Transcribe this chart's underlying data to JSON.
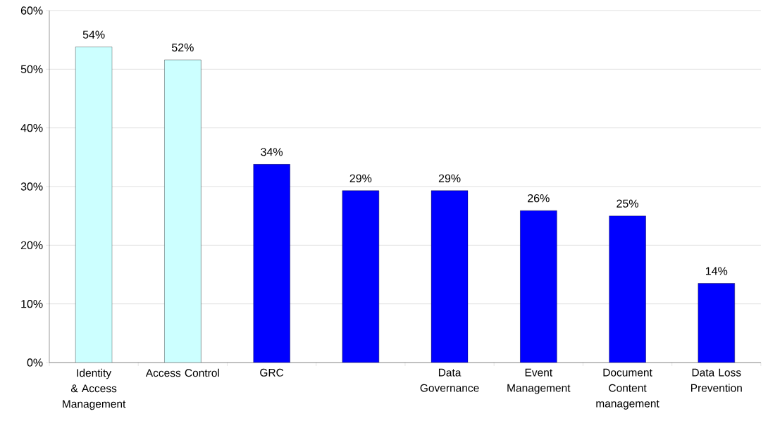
{
  "chart_data": {
    "type": "bar",
    "categories": [
      "Identity & Access Management",
      "Access Control",
      "GRC",
      null,
      "Data Governance",
      "Event Management",
      "Document Content management",
      "Data Loss Prevention"
    ],
    "values": [
      53.8,
      51.6,
      33.8,
      29.3,
      29.3,
      25.9,
      25.0,
      13.5
    ],
    "value_labels": [
      "54%",
      "52%",
      "34%",
      "29%",
      "29%",
      "26%",
      "25%",
      "14%"
    ],
    "colors": [
      "#ccffff",
      "#ccffff",
      "#0000ff",
      "#0000ff",
      "#0000ff",
      "#0000ff",
      "#0000ff",
      "#0000ff"
    ],
    "ylim": [
      0,
      60
    ],
    "yticks": [
      {
        "value": 0,
        "label": "0%"
      },
      {
        "value": 10,
        "label": "10%"
      },
      {
        "value": 20,
        "label": "20%"
      },
      {
        "value": 30,
        "label": "30%"
      },
      {
        "value": 40,
        "label": "40%"
      },
      {
        "value": 50,
        "label": "50%"
      },
      {
        "value": 60,
        "label": "60%"
      }
    ],
    "grid": "y"
  }
}
